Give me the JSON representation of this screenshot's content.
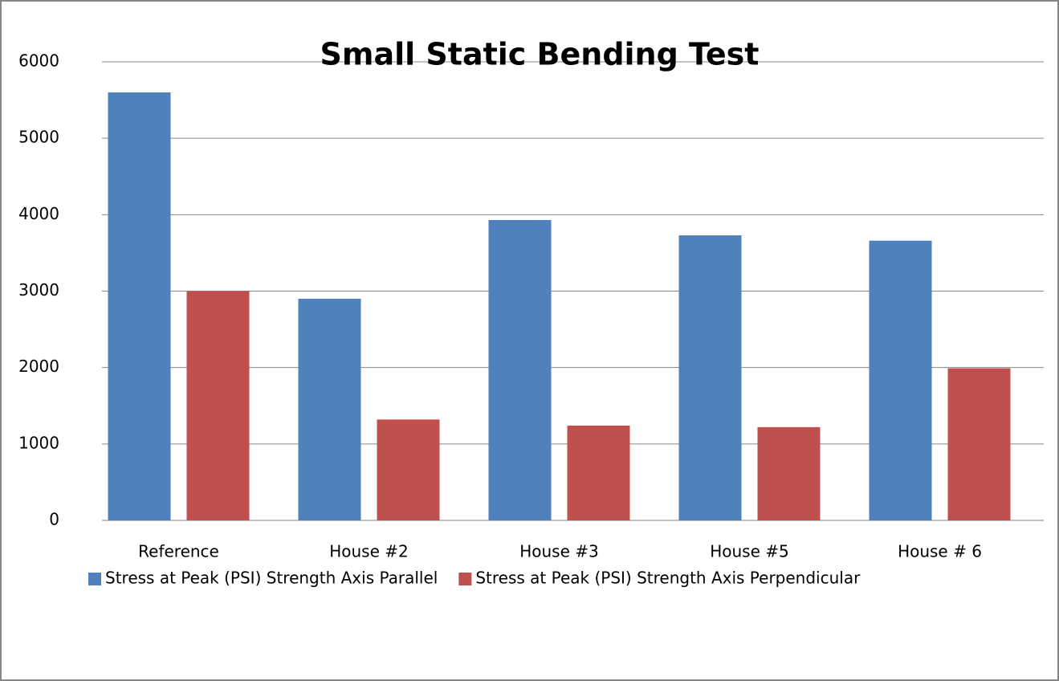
{
  "chart_data": {
    "type": "bar",
    "title": "Small Static Bending Test",
    "categories": [
      "Reference",
      "House #2",
      "House #3",
      "House #5",
      "House # 6"
    ],
    "series": [
      {
        "name": "Stress at Peak (PSI) Strength Axis Parallel",
        "color": "#4f81bd",
        "values": [
          5600,
          2900,
          3930,
          3730,
          3660
        ]
      },
      {
        "name": "Stress at Peak (PSI) Strength Axis Perpendicular",
        "color": "#c0504d",
        "values": [
          3000,
          1320,
          1240,
          1220,
          1990
        ]
      }
    ],
    "ylim": [
      0,
      6000
    ],
    "yticks": [
      0,
      1000,
      2000,
      3000,
      4000,
      5000,
      6000
    ],
    "grid": true,
    "legend": "bottom"
  }
}
